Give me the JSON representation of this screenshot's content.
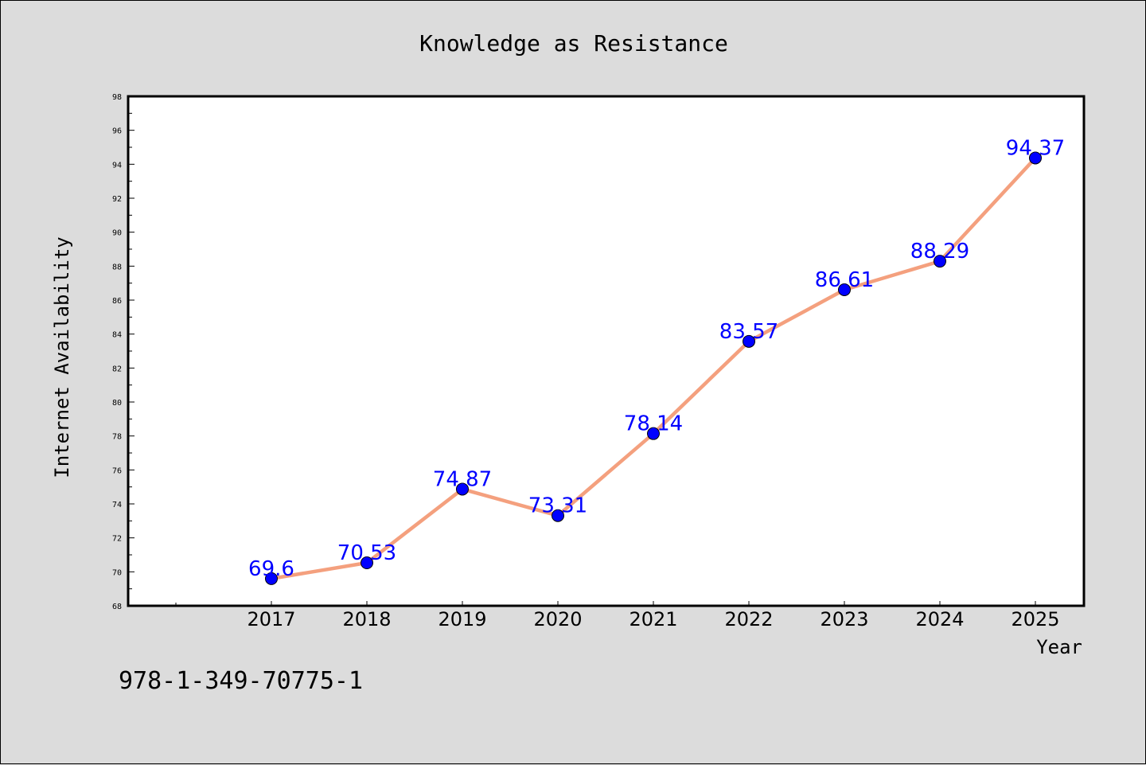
{
  "chart_data": {
    "type": "line",
    "title": "Knowledge as Resistance",
    "xlabel": "Year",
    "ylabel": "Internet Availability",
    "categories": [
      "2017",
      "2018",
      "2019",
      "2020",
      "2021",
      "2022",
      "2023",
      "2024",
      "2025"
    ],
    "series": [
      {
        "values": [
          69.6,
          70.53,
          74.87,
          73.31,
          78.14,
          83.57,
          86.61,
          88.29,
          94.37
        ],
        "labels": [
          "69.6",
          "70.53",
          "74.87",
          "73.31",
          "78.14",
          "83.57",
          "86.61",
          "88.29",
          "94.37"
        ],
        "line_color": "#f4a07e",
        "marker_color": "#0000ff"
      }
    ],
    "ylim": [
      68,
      98
    ],
    "yticks": [
      "68",
      "70",
      "72",
      "74",
      "76",
      "78",
      "80",
      "82",
      "84",
      "86",
      "88",
      "90",
      "92",
      "94",
      "96",
      "98"
    ],
    "grid": false,
    "legend": "none",
    "background_color": "#dcdcdc",
    "plot_background_color": "#ffffff"
  },
  "footer": {
    "isbn": "978-1-349-70775-1"
  }
}
